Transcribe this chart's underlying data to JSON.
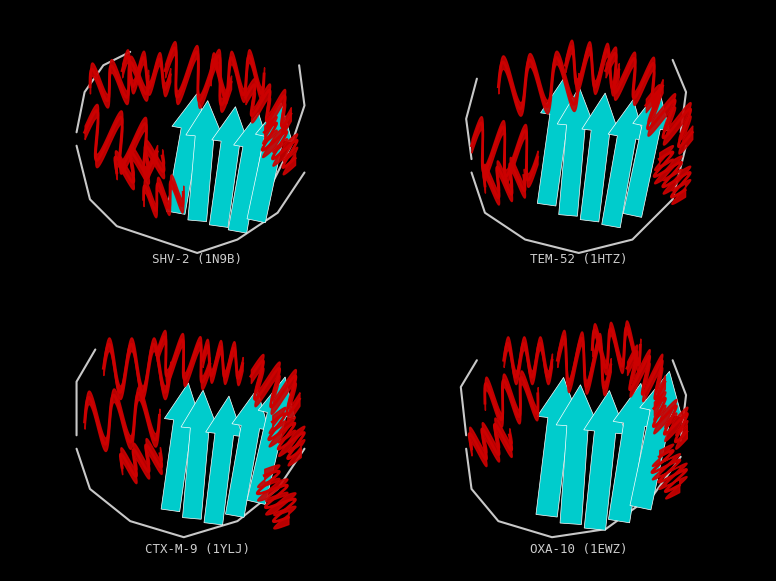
{
  "background_color": "#000000",
  "text_color": "#cccccc",
  "helix_color": "#cc0000",
  "sheet_color": "#00cccc",
  "loop_color": "#c8c8c8",
  "labels": [
    "SHV-2 (1N9B)",
    "TEM-52 (1HTZ)",
    "CTX-M-9 (1YLJ)",
    "OXA-10 (1EWZ)"
  ],
  "label_fontsize": 9,
  "fig_width": 7.76,
  "fig_height": 5.81,
  "dpi": 100
}
